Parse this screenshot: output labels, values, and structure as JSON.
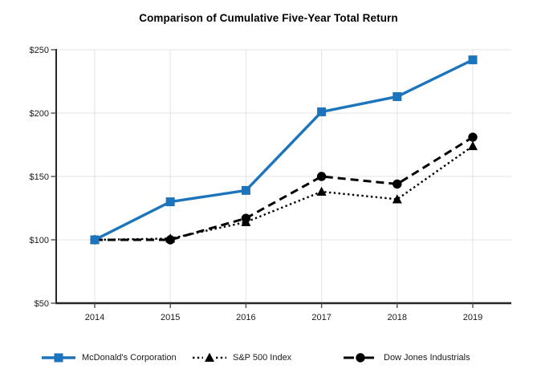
{
  "chart_data": {
    "type": "line",
    "title": "Comparison of Cumulative Five-Year Total Return",
    "categories": [
      "2014",
      "2015",
      "2016",
      "2017",
      "2018",
      "2019"
    ],
    "series": [
      {
        "name": "McDonald's Corporation",
        "values": [
          100,
          130,
          139,
          201,
          213,
          242
        ],
        "color": "#1c75bc",
        "line_style": "solid",
        "marker": "square"
      },
      {
        "name": "S&P 500 Index",
        "values": [
          100,
          101,
          114,
          138,
          132,
          174
        ],
        "color": "#000000",
        "line_style": "dotted",
        "marker": "triangle"
      },
      {
        "name": "Dow Jones Industrials",
        "values": [
          100,
          100,
          117,
          150,
          144,
          181
        ],
        "color": "#000000",
        "line_style": "dashed",
        "marker": "circle"
      }
    ],
    "y_ticks": [
      {
        "value": 50,
        "label": "$50"
      },
      {
        "value": 100,
        "label": "$100"
      },
      {
        "value": 150,
        "label": "$150"
      },
      {
        "value": 200,
        "label": "$200"
      },
      {
        "value": 250,
        "label": "$250"
      }
    ],
    "ylim": [
      50,
      250
    ],
    "grid": true,
    "legend_position": "bottom",
    "colors": {
      "gridline": "#e3e3e3",
      "axis": "#262626",
      "tick": "#4d4d4d",
      "label": "#1a1a1a"
    }
  }
}
